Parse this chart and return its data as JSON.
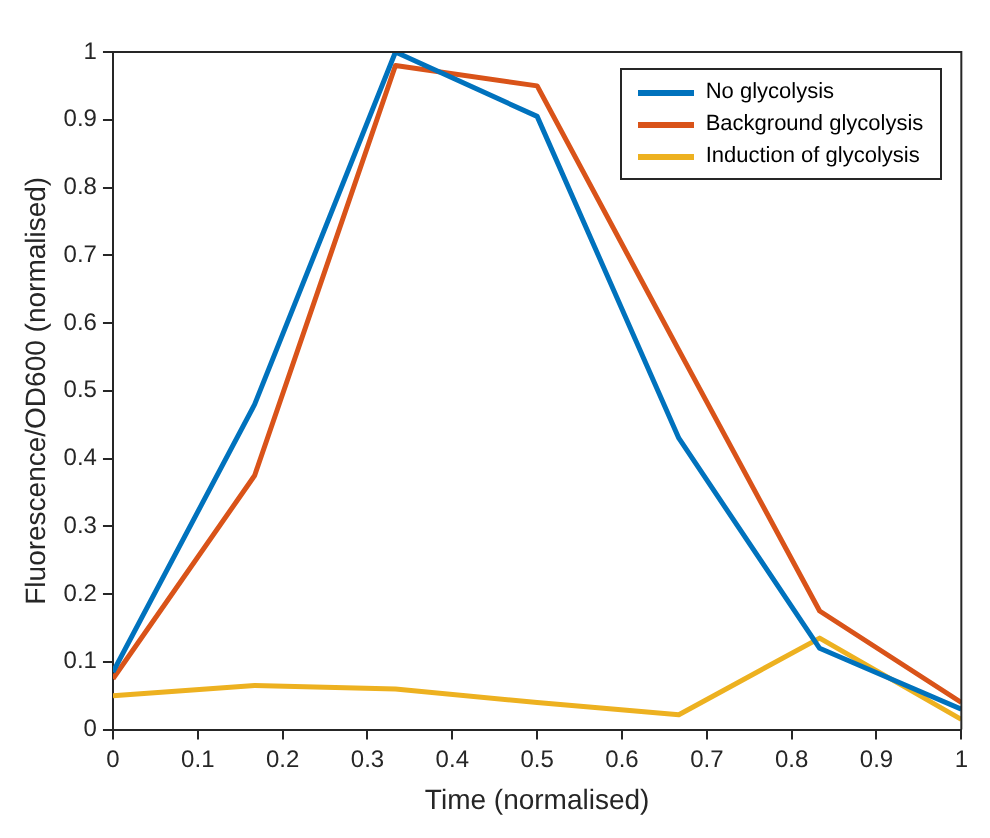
{
  "chart_data": {
    "type": "line",
    "xlabel": "Time (normalised)",
    "ylabel": "Fluorescence/OD600 (normalised)",
    "x": [
      0,
      0.167,
      0.333,
      0.5,
      0.667,
      0.833,
      1
    ],
    "series": [
      {
        "name": "No glycolysis",
        "color": "#0072bd",
        "values": [
          0.085,
          0.48,
          1.0,
          0.905,
          0.43,
          0.12,
          0.03
        ]
      },
      {
        "name": "Background glycolysis",
        "color": "#d95319",
        "values": [
          0.075,
          0.375,
          0.98,
          0.95,
          0.56,
          0.175,
          0.04
        ]
      },
      {
        "name": "Induction of glycolysis",
        "color": "#edb120",
        "values": [
          0.05,
          0.065,
          0.06,
          0.04,
          0.022,
          0.135,
          0.015
        ]
      }
    ],
    "xlim": [
      0,
      1
    ],
    "xticks": [
      0,
      0.1,
      0.2,
      0.3,
      0.4,
      0.5,
      0.6,
      0.7,
      0.8,
      0.9,
      1
    ],
    "ylim": [
      0,
      1
    ],
    "yticks": [
      0,
      0.1,
      0.2,
      0.3,
      0.4,
      0.5,
      0.6,
      0.7,
      0.8,
      0.9,
      1
    ],
    "grid": false,
    "legend": "top right",
    "marker": "none",
    "line_style": "solid"
  }
}
